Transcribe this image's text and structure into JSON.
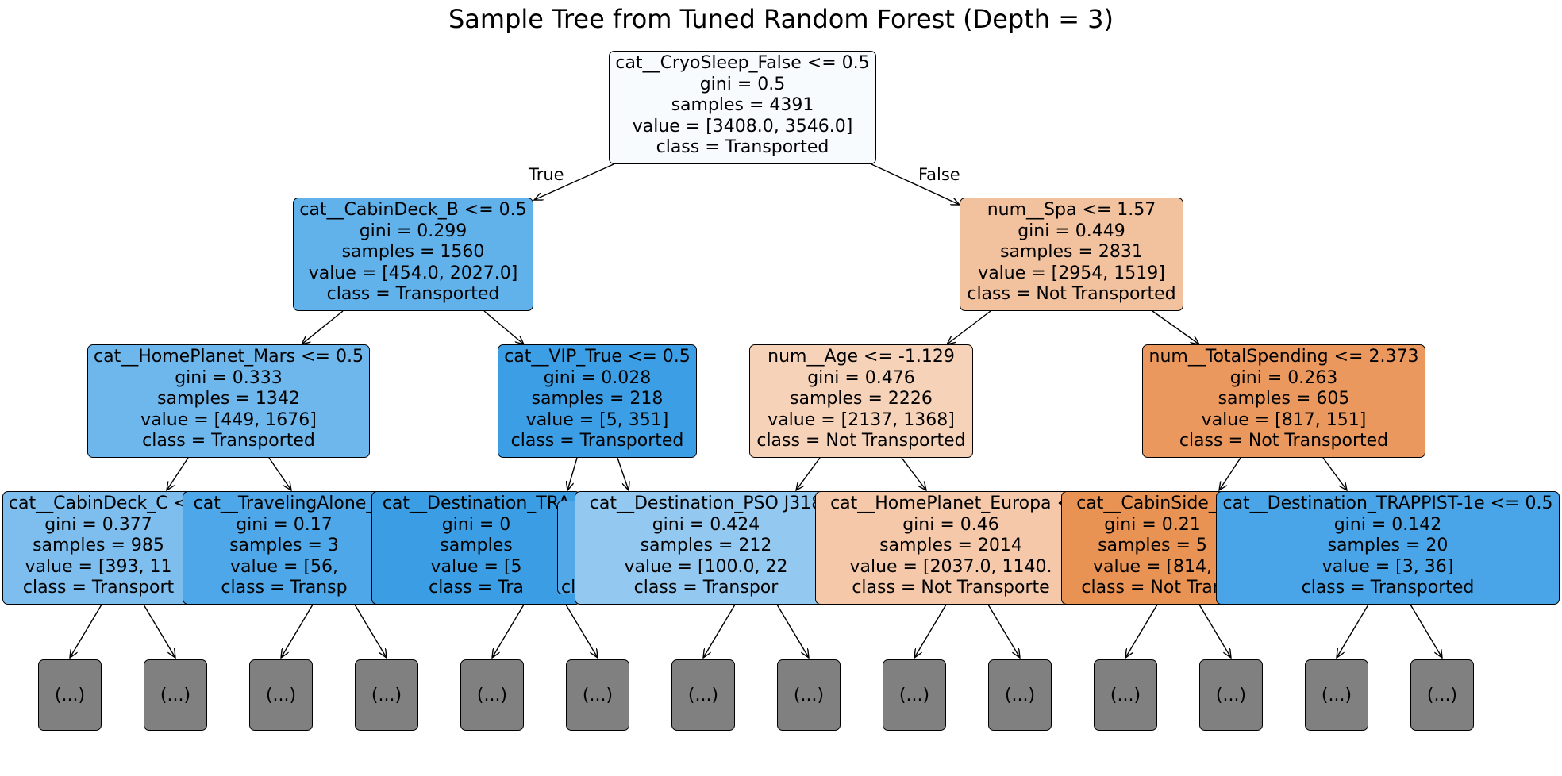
{
  "title": "Sample Tree from Tuned Random Forest (Depth = 3)",
  "edge_labels": {
    "left": "True",
    "right": "False"
  },
  "nodes": {
    "root": {
      "lines": [
        "cat__CryoSleep_False <= 0.5",
        "gini = 0.5",
        "samples = 4391",
        "value = [3408.0, 3546.0]",
        "class = Transported"
      ],
      "color": "#f7fbfe"
    },
    "n1": {
      "lines": [
        "cat__CabinDeck_B <= 0.5",
        "gini = 0.299",
        "samples = 1560",
        "value = [454.0, 2027.0]",
        "class = Transported"
      ],
      "color": "#61b1ea"
    },
    "n2": {
      "lines": [
        "num__Spa <= 1.57",
        "gini = 0.449",
        "samples = 2831",
        "value = [2954, 1519]",
        "class = Not Transported"
      ],
      "color": "#f2c29f"
    },
    "n3": {
      "lines": [
        "cat__HomePlanet_Mars <= 0.5",
        "gini = 0.333",
        "samples = 1342",
        "value = [449, 1676]",
        "class = Transported"
      ],
      "color": "#6eb7ec"
    },
    "n4": {
      "lines": [
        "cat__VIP_True <= 0.5",
        "gini = 0.028",
        "samples = 218",
        "value = [5, 351]",
        "class = Transported"
      ],
      "color": "#3c9ee5"
    },
    "n5": {
      "lines": [
        "num__Age <= -1.129",
        "gini = 0.476",
        "samples = 2226",
        "value = [2137, 1368]",
        "class = Not Transported"
      ],
      "color": "#f6d2b8"
    },
    "n6": {
      "lines": [
        "num__TotalSpending <= 2.373",
        "gini = 0.263",
        "samples = 605",
        "value = [817, 151]",
        "class = Not Transported"
      ],
      "color": "#ea985e"
    },
    "n7": {
      "lines": [
        "cat__CabinDeck_C <",
        "gini = 0.377",
        "samples = 985",
        "value = [393, 11",
        "class = Transport"
      ],
      "color": "#7dbeee"
    },
    "n8": {
      "lines": [
        "cat__TravelingAlone_",
        "gini = 0.17",
        "samples = 3",
        "value = [56,",
        "class = Transp"
      ],
      "color": "#4da7e8"
    },
    "n9": {
      "lines": [
        "cat__Destination_TRA",
        "gini = 0",
        "samples",
        "value = [5",
        "class = Tra"
      ],
      "color": "#3b9ee5"
    },
    "n10": {
      "lines": [
        "cat__Destination_PSO J318",
        "gini = 0.424",
        "samples = 212",
        "value = [100.0, 22",
        "class = Transpor"
      ],
      "color": "#93c9f1"
    },
    "n11": {
      "lines": [
        "cat__HomePlanet_Europa <",
        "gini = 0.46",
        "samples = 2014",
        "value = [2037.0, 1140.",
        "class = Not Transporte"
      ],
      "color": "#f4c8a8"
    },
    "n12": {
      "lines": [
        "cat__CabinSide_S",
        "gini = 0.21",
        "samples = 5",
        "value = [814,",
        "class = Not Tran"
      ],
      "color": "#e89253"
    },
    "n13": {
      "lines": [
        "cat__Destination_TRAPPIST-1e <= 0.5",
        "gini = 0.142",
        "samples = 20",
        "value = [3, 36]",
        "class = Transported"
      ],
      "color": "#49a5e7"
    },
    "fragment": {
      "lines": [
        "cl"
      ],
      "color": "#53a9e8"
    }
  },
  "leaf_label": "(...)"
}
